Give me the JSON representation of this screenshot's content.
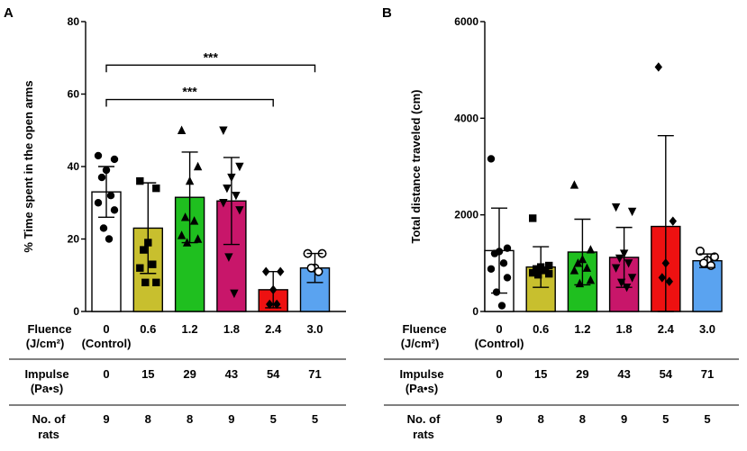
{
  "chart_data": [
    {
      "type": "bar",
      "panel_label": "A",
      "ylabel": "% Time spent in the open arms",
      "ylim": [
        0,
        80
      ],
      "yticks": [
        "0",
        "20",
        "40",
        "60",
        "80"
      ],
      "tick_values": [
        0,
        20,
        40,
        60,
        80
      ],
      "categories": [
        "0",
        "0.6",
        "1.2",
        "1.8",
        "2.4",
        "3.0"
      ],
      "values": [
        33,
        23,
        31.5,
        30.5,
        6,
        12
      ],
      "errors": [
        7,
        12.5,
        12.5,
        12,
        5,
        4
      ],
      "colors": [
        "#ffffff",
        "#c8bf2e",
        "#1fbf1f",
        "#c8166a",
        "#ee1111",
        "#5aa3f0"
      ],
      "markers": [
        "circle",
        "square",
        "triangle",
        "triangle-down",
        "diamond",
        "circle-open"
      ],
      "points": [
        [
          43,
          42,
          39,
          37,
          32,
          30,
          28,
          23,
          20
        ],
        [
          36,
          34,
          19,
          17,
          13,
          12,
          8,
          8
        ],
        [
          50,
          40,
          36,
          26,
          25,
          21,
          20,
          19
        ],
        [
          50,
          40,
          37,
          34,
          32,
          30,
          28,
          15,
          5
        ],
        [
          11,
          11,
          6,
          2,
          2
        ],
        [
          16,
          16,
          12,
          12,
          11
        ]
      ],
      "significance": [
        {
          "from": 0,
          "to": 5,
          "level": 68,
          "label": "***"
        },
        {
          "from": 0,
          "to": 4,
          "level": 58.5,
          "label": "***"
        }
      ]
    },
    {
      "type": "bar",
      "panel_label": "B",
      "ylabel": "Total distance traveled (cm)",
      "ylim": [
        0,
        6000
      ],
      "yticks": [
        "0",
        "2000",
        "4000",
        "6000"
      ],
      "tick_values": [
        0,
        2000,
        4000,
        6000
      ],
      "categories": [
        "0",
        "0.6",
        "1.2",
        "1.8",
        "2.4",
        "3.0"
      ],
      "values": [
        1260,
        920,
        1230,
        1120,
        1760,
        1050
      ],
      "errors": [
        880,
        420,
        680,
        620,
        1880,
        140
      ],
      "colors": [
        "#ffffff",
        "#c8bf2e",
        "#1fbf1f",
        "#c8166a",
        "#ee1111",
        "#5aa3f0"
      ],
      "markers": [
        "circle",
        "square",
        "triangle",
        "triangle-down",
        "diamond",
        "circle-open"
      ],
      "points": [
        [
          3160,
          1310,
          1240,
          1200,
          1000,
          880,
          700,
          400,
          120
        ],
        [
          1930,
          950,
          920,
          880,
          850,
          800,
          780,
          760
        ],
        [
          2620,
          1280,
          1080,
          1000,
          900,
          850,
          650,
          580
        ],
        [
          2160,
          2070,
          1200,
          1100,
          1000,
          900,
          700,
          600,
          500
        ],
        [
          5060,
          1870,
          1000,
          700,
          620
        ],
        [
          1250,
          1130,
          1060,
          1000,
          950
        ]
      ],
      "significance": []
    }
  ],
  "table": {
    "fluence_label_1": "Fluence",
    "fluence_label_2": "(J/cm²)",
    "fluence_values": [
      "0",
      "0.6",
      "1.2",
      "1.8",
      "2.4",
      "3.0"
    ],
    "control_label": "(Control)",
    "impulse_label_1": "Impulse",
    "impulse_label_2": "(Pa•s)",
    "impulse_values": [
      "0",
      "15",
      "29",
      "43",
      "54",
      "71"
    ],
    "rats_label_1": "No. of",
    "rats_label_2": "rats",
    "rats_values": [
      "9",
      "8",
      "8",
      "9",
      "5",
      "5"
    ]
  }
}
